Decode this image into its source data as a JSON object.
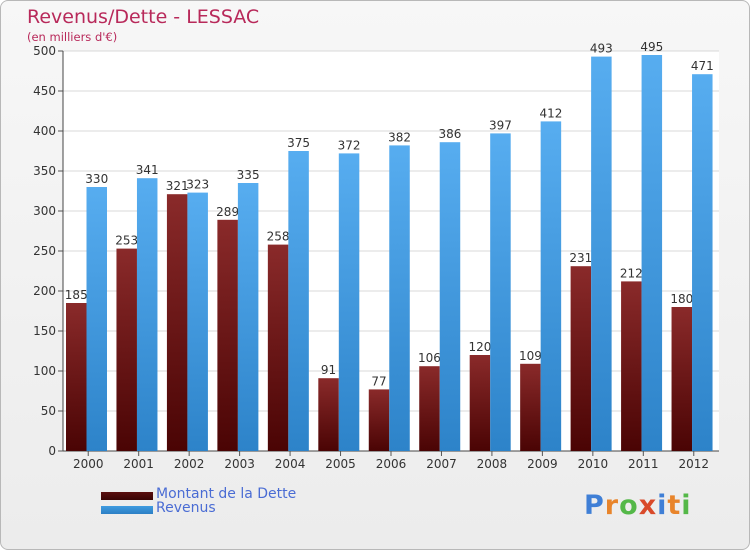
{
  "title": "Revenus/Dette - LESSAC",
  "subtitle": "(en milliers d'€)",
  "chart_data": {
    "type": "bar",
    "categories": [
      "2000",
      "2001",
      "2002",
      "2003",
      "2004",
      "2005",
      "2006",
      "2007",
      "2008",
      "2009",
      "2010",
      "2011",
      "2012"
    ],
    "series": [
      {
        "name": "Montant de la Dette",
        "color": "#7a1b1b",
        "values": [
          185,
          253,
          321,
          289,
          258,
          91,
          77,
          106,
          120,
          109,
          231,
          212,
          180
        ]
      },
      {
        "name": "Revenus",
        "color": "#4da3e8",
        "values": [
          330,
          341,
          323,
          335,
          375,
          372,
          382,
          386,
          397,
          412,
          493,
          495,
          471
        ]
      }
    ],
    "ylim": [
      0,
      500
    ],
    "yticks": [
      0,
      50,
      100,
      150,
      200,
      250,
      300,
      350,
      400,
      450,
      500
    ],
    "grid": true,
    "legend_position": "bottom-left"
  },
  "legend": [
    {
      "label": "Montant de la Dette",
      "color": "#5a0f0f"
    },
    {
      "label": "Revenus",
      "color": "#3f9be0"
    }
  ],
  "logo": {
    "letters": [
      "P",
      "r",
      "o",
      "x",
      "i",
      "t",
      "i"
    ],
    "colors": [
      "#3f7fd6",
      "#e8842a",
      "#54b848",
      "#d94a2a",
      "#3f7fd6",
      "#e8842a",
      "#54b848"
    ]
  }
}
